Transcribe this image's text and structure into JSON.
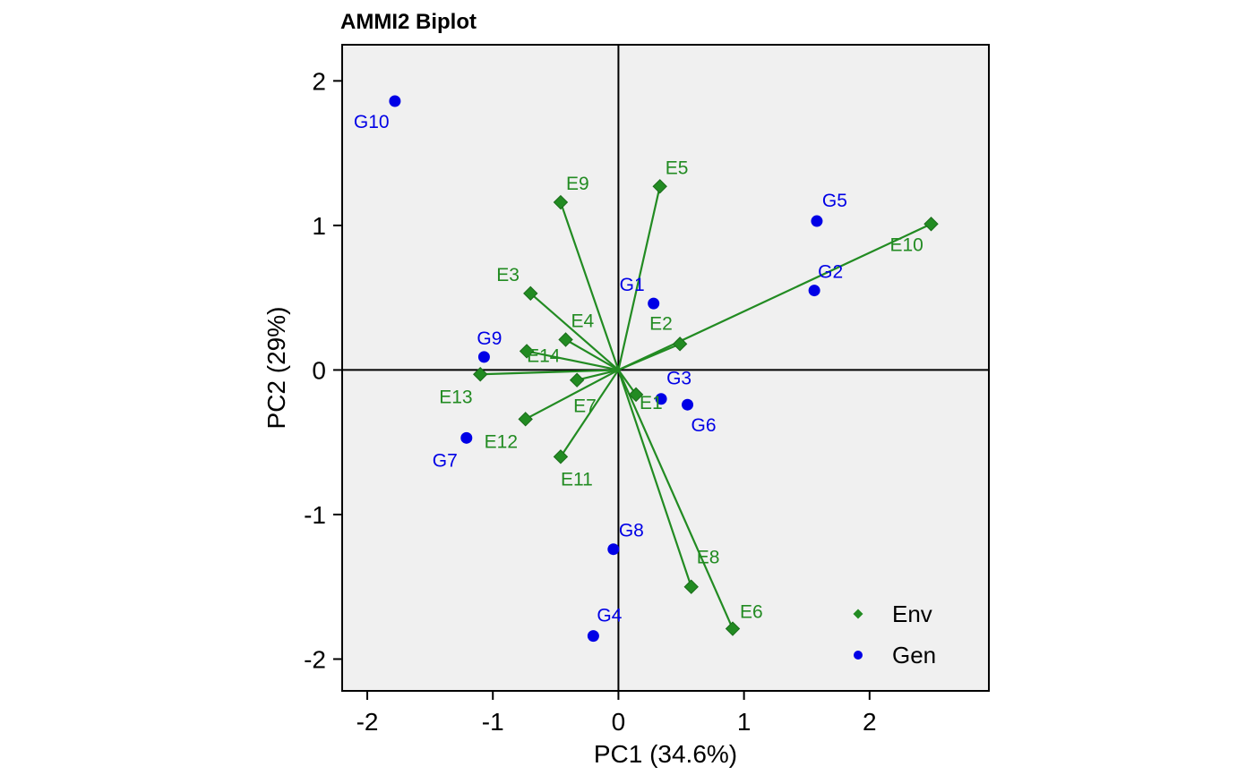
{
  "chart_data": {
    "type": "scatter",
    "title": "AMMI2 Biplot",
    "xlabel": "PC1 (34.6%)",
    "ylabel": "PC2 (29%)",
    "xlim": [
      -2.2,
      2.95
    ],
    "ylim": [
      -2.22,
      2.25
    ],
    "xticks": [
      -2,
      -1,
      0,
      1,
      2
    ],
    "yticks": [
      -2,
      -1,
      0,
      1,
      2
    ],
    "background": "#f0f0f0",
    "colors": {
      "env": "#228b22",
      "gen": "#0000e6"
    },
    "legend": {
      "position": "bottom-right",
      "entries": [
        "Env",
        "Gen"
      ]
    },
    "series": [
      {
        "name": "Env",
        "marker": "diamond",
        "vectors_from_origin": true,
        "points": [
          {
            "label": "E1",
            "x": 0.14,
            "y": -0.17
          },
          {
            "label": "E2",
            "x": 0.49,
            "y": 0.18
          },
          {
            "label": "E3",
            "x": -0.7,
            "y": 0.53
          },
          {
            "label": "E4",
            "x": -0.42,
            "y": 0.21
          },
          {
            "label": "E5",
            "x": 0.33,
            "y": 1.27
          },
          {
            "label": "E6",
            "x": 0.91,
            "y": -1.79
          },
          {
            "label": "E7",
            "x": -0.33,
            "y": -0.07
          },
          {
            "label": "E8",
            "x": 0.58,
            "y": -1.5
          },
          {
            "label": "E9",
            "x": -0.46,
            "y": 1.16
          },
          {
            "label": "E10",
            "x": 2.49,
            "y": 1.01
          },
          {
            "label": "E11",
            "x": -0.46,
            "y": -0.6
          },
          {
            "label": "E12",
            "x": -0.74,
            "y": -0.34
          },
          {
            "label": "E13",
            "x": -1.1,
            "y": -0.03
          },
          {
            "label": "E14",
            "x": -0.73,
            "y": 0.13
          }
        ]
      },
      {
        "name": "Gen",
        "marker": "circle",
        "points": [
          {
            "label": "G1",
            "x": 0.28,
            "y": 0.46
          },
          {
            "label": "G2",
            "x": 1.56,
            "y": 0.55
          },
          {
            "label": "G3",
            "x": 0.34,
            "y": -0.2
          },
          {
            "label": "G4",
            "x": -0.2,
            "y": -1.84
          },
          {
            "label": "G5",
            "x": 1.58,
            "y": 1.03
          },
          {
            "label": "G6",
            "x": 0.55,
            "y": -0.24
          },
          {
            "label": "G7",
            "x": -1.21,
            "y": -0.47
          },
          {
            "label": "G8",
            "x": -0.04,
            "y": -1.24
          },
          {
            "label": "G9",
            "x": -1.07,
            "y": 0.09
          },
          {
            "label": "G10",
            "x": -1.78,
            "y": 1.86
          }
        ]
      }
    ]
  }
}
